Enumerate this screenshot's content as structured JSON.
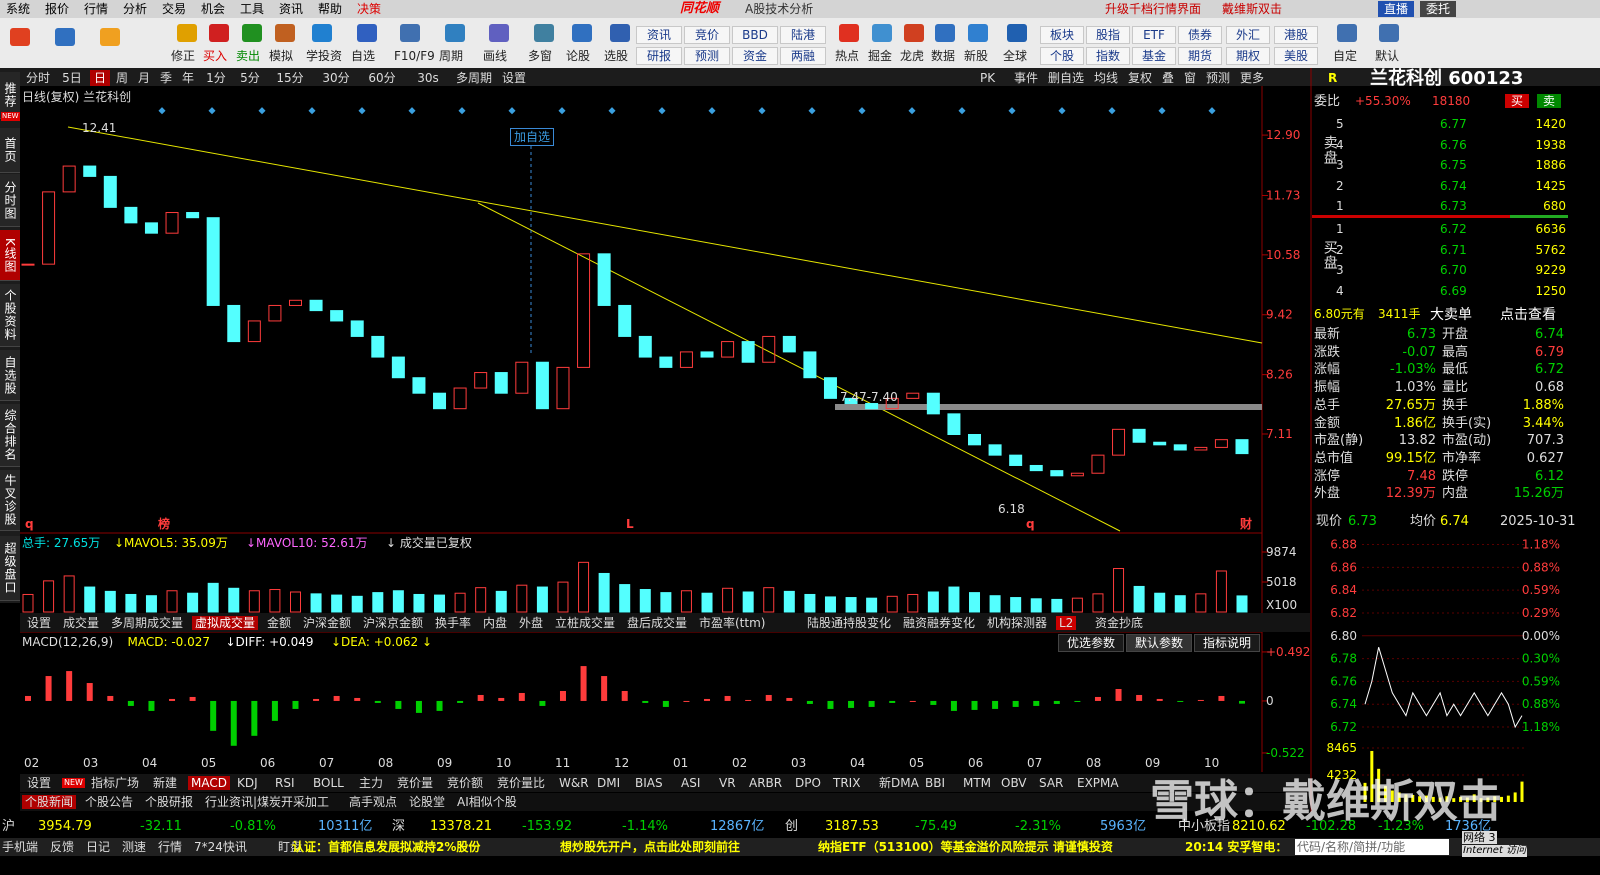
{
  "menu": [
    "系统",
    "报价",
    "行情",
    "分析",
    "交易",
    "机会",
    "工具",
    "资讯",
    "帮助",
    "决策"
  ],
  "app_title": "同花顺",
  "app_subtitle": "A股技术分析",
  "top_links": [
    "升级千档行情界面",
    "戴维斯双击"
  ],
  "top_buttons": [
    "直播",
    "委托"
  ],
  "toolbar": [
    "修正",
    "买入",
    "卖出",
    "模拟",
    "学投资",
    "自选",
    "F10/F9",
    "周期",
    "画线",
    "多窗",
    "论股",
    "选股"
  ],
  "toolbar_grid": [
    [
      "资讯",
      "竞价",
      "BBD",
      "陆港"
    ],
    [
      "研报",
      "预测",
      "资金",
      "两融"
    ]
  ],
  "toolbar2": [
    "热点",
    "掘金",
    "龙虎",
    "数据",
    "新股",
    "全球"
  ],
  "toolbar_grid2": [
    [
      "板块",
      "股指",
      "ETF",
      "债券",
      "外汇",
      "港股"
    ],
    [
      "个股",
      "指数",
      "基金",
      "期货",
      "期权",
      "美股"
    ]
  ],
  "toolbar3": [
    "自定",
    "默认"
  ],
  "new_badge": "NEW",
  "sidebar": [
    "推荐",
    "首页",
    "分时图",
    "K线图",
    "个股资料",
    "自选股",
    "综合排名",
    "牛叉诊股",
    "超级盘口"
  ],
  "period_tabs": [
    "分时",
    "5日",
    "日",
    "周",
    "月",
    "季",
    "年",
    "1分",
    "5分",
    "15分",
    "30分",
    "60分",
    "30s",
    "多周期",
    "设置"
  ],
  "chart_tools": [
    "PK",
    "事件",
    "删自选",
    "均线",
    "复权",
    "叠",
    "窗",
    "预测",
    "更多"
  ],
  "kline": {
    "title": "日线(复权) 兰花科创",
    "ylim": [
      5.25,
      13.58
    ],
    "yticks": [
      {
        "value": 12.9,
        "label": "12.90"
      },
      11.73,
      10.58,
      9.42,
      8.26,
      7.11
    ],
    "closes": [
      10.4,
      11.8,
      12.3,
      12.1,
      11.5,
      11.2,
      11.0,
      11.4,
      11.3,
      9.6,
      8.9,
      9.3,
      9.6,
      9.7,
      9.5,
      9.3,
      9.0,
      8.6,
      8.2,
      7.9,
      7.6,
      8.0,
      8.3,
      7.9,
      8.5,
      7.6,
      8.4,
      10.6,
      9.6,
      9.0,
      8.6,
      8.4,
      8.7,
      8.6,
      8.9,
      8.5,
      9.0,
      8.7,
      8.2,
      7.8,
      7.7,
      7.6,
      7.8,
      7.9,
      7.5,
      7.1,
      6.9,
      6.7,
      6.5,
      6.4,
      6.3,
      6.35,
      6.7,
      7.2,
      6.95,
      6.9,
      6.8,
      6.85,
      7.0,
      6.73
    ],
    "annotations": {
      "high": "12.41",
      "low": "6.18",
      "range": "7.47-7.40",
      "add": "加自选"
    },
    "markers": [
      "q",
      "榜",
      "L",
      "q",
      "财"
    ],
    "months": [
      "02",
      "03",
      "04",
      "05",
      "06",
      "07",
      "08",
      "09",
      "10",
      "11",
      "12",
      "01",
      "02",
      "03",
      "04",
      "05",
      "06",
      "07",
      "08",
      "09",
      "10"
    ]
  },
  "volume": {
    "legend": [
      "总手: 27.65万",
      "↓MAVOL5: 35.09万",
      "↓MAVOL10: 52.61万",
      "↓ 成交量已复权"
    ],
    "ylim": [
      162,
      12625
    ],
    "yticks": [
      9874,
      5018
    ],
    "unit": "X100",
    "values": [
      3000,
      5200,
      6000,
      4200,
      3500,
      3000,
      2800,
      3600,
      3200,
      4800,
      4000,
      3600,
      3800,
      3400,
      3100,
      2900,
      2700,
      3300,
      3600,
      3000,
      2900,
      3200,
      4100,
      3500,
      4500,
      4200,
      5000,
      8200,
      6400,
      4600,
      3800,
      3300,
      3600,
      3200,
      4000,
      3400,
      4100,
      3500,
      3000,
      2600,
      2500,
      2400,
      2700,
      3000,
      3400,
      4200,
      3300,
      2800,
      2500,
      2300,
      2200,
      2400,
      3100,
      7200,
      4300,
      3200,
      2800,
      3100,
      6800,
      2765
    ]
  },
  "volume_tabs": [
    "设置",
    "成交量",
    "多周期成交量",
    "虚拟成交量",
    "金额",
    "沪深金额",
    "沪深京金额",
    "换手率",
    "内盘",
    "外盘",
    "立桩成交量",
    "盘后成交量",
    "市盈率(ttm)",
    "陆股通持股变化",
    "融资融券变化",
    "机构探测器",
    "L2",
    "资金抄底"
  ],
  "macd": {
    "legend": [
      "MACD(12,26,9)",
      "MACD: -0.027",
      "↓DIFF: +0.049",
      "↓DEA: +0.062 ↓"
    ],
    "buttons": [
      "优选参数",
      "默认参数",
      "指标说明"
    ],
    "ylim": [
      -0.673,
      0.662
    ],
    "yticks": [
      {
        "value": 0.492,
        "label": "+0.492"
      },
      0,
      -0.522
    ],
    "values": [
      0.05,
      0.25,
      0.3,
      0.18,
      0.05,
      -0.05,
      -0.1,
      0.02,
      0.04,
      -0.3,
      -0.45,
      -0.35,
      -0.2,
      -0.08,
      0.02,
      0.05,
      0.03,
      -0.02,
      -0.08,
      -0.12,
      -0.1,
      -0.02,
      0.06,
      0.03,
      0.08,
      -0.05,
      0.1,
      0.35,
      0.25,
      0.1,
      -0.02,
      -0.06,
      0.0,
      0.02,
      0.05,
      0.01,
      0.06,
      0.03,
      -0.03,
      -0.08,
      -0.07,
      -0.06,
      -0.02,
      0.0,
      -0.04,
      -0.1,
      -0.09,
      -0.08,
      -0.06,
      -0.05,
      -0.03,
      -0.01,
      0.04,
      0.12,
      0.06,
      0.02,
      -0.01,
      0.01,
      0.05,
      -0.027
    ]
  },
  "indicator_tabs": [
    "设置",
    "指标广场",
    "新建",
    "MACD",
    "KDJ",
    "RSI",
    "BOLL",
    "主力",
    "竞价量",
    "竞价额",
    "竞价量比",
    "W&R",
    "DMI",
    "BIAS",
    "ASI",
    "VR",
    "ARBR",
    "DPO",
    "TRIX",
    "新DMA",
    "BBI",
    "MTM",
    "OBV",
    "SAR",
    "EXPMA"
  ],
  "news_tabs": [
    "个股新闻",
    "个股公告",
    "个股研报",
    "行业资讯|煤炭开采加工",
    "高手观点",
    "论股堂",
    "AI相似个股"
  ],
  "quote": {
    "code_label": "R",
    "name": "兰花科创 600123",
    "webi_label": "委比",
    "webi": "+55.30%",
    "webi_vol": "18180",
    "buy_btn": "买",
    "sell_btn": "卖",
    "ask_label": "卖盘",
    "bid_label": "买盘",
    "asks": [
      [
        "5",
        "6.77",
        "1420"
      ],
      [
        "4",
        "6.76",
        "1938"
      ],
      [
        "3",
        "6.75",
        "1886"
      ],
      [
        "2",
        "6.74",
        "1425"
      ],
      [
        "1",
        "6.73",
        "680"
      ]
    ],
    "bids": [
      [
        "1",
        "6.72",
        "6636"
      ],
      [
        "2",
        "6.71",
        "5762"
      ],
      [
        "3",
        "6.70",
        "9229"
      ],
      [
        "4",
        "6.69",
        "1250"
      ]
    ],
    "big_order": [
      "6.80元有",
      "3411手",
      "大卖单",
      "点击查看"
    ],
    "stats": [
      [
        "最新",
        "6.73",
        "开盘",
        "6.74"
      ],
      [
        "涨跌",
        "-0.07",
        "最高",
        "6.79"
      ],
      [
        "涨幅",
        "-1.03%",
        "最低",
        "6.72"
      ],
      [
        "振幅",
        "1.03%",
        "量比",
        "0.68"
      ],
      [
        "总手",
        "27.65万",
        "换手",
        "1.88%"
      ],
      [
        "金额",
        "1.86亿",
        "换手(实)",
        "3.44%"
      ],
      [
        "市盈(静)",
        "13.82",
        "市盈(动)",
        "707.3"
      ],
      [
        "总市值",
        "99.15亿",
        "市净率",
        "0.627"
      ],
      [
        "涨停",
        "7.48",
        "跌停",
        "6.12"
      ],
      [
        "外盘",
        "12.39万",
        "内盘",
        "15.26万"
      ]
    ]
  },
  "intraday": {
    "header": [
      "现价",
      "6.73",
      "均价",
      "6.74",
      "2025-10-31"
    ],
    "ylim": [
      6.713,
      6.884
    ],
    "yticks": [
      6.88,
      6.86,
      6.84,
      6.82,
      {
        "value": 6.8,
        "label": "6.80"
      },
      6.78,
      6.76,
      6.74,
      6.72
    ],
    "pct_labels": [
      "1.18%",
      "0.88%",
      "0.59%",
      "0.29%",
      "0.00%",
      "0.30%",
      "0.59%",
      "0.88%",
      "1.18%"
    ],
    "prices": [
      6.74,
      6.76,
      6.79,
      6.77,
      6.75,
      6.74,
      6.73,
      6.75,
      6.74,
      6.73,
      6.74,
      6.75,
      6.73,
      6.74,
      6.73,
      6.74,
      6.75,
      6.74,
      6.73,
      6.74,
      6.75,
      6.74,
      6.72,
      6.73
    ],
    "vol_ylim": [
      0,
      9719
    ],
    "vol_yticks": [
      8465,
      4232
    ],
    "volumes": [
      3000,
      8000,
      5200,
      2500,
      1800,
      1500,
      1200,
      1100,
      900,
      1000,
      800,
      700,
      900,
      600,
      800,
      700,
      1200,
      600,
      700,
      900,
      800,
      1000,
      1500,
      3200
    ]
  },
  "index_bar": [
    {
      "name": "沪",
      "price": "3954.79",
      "chg": "-32.11",
      "pct": "-0.81%",
      "amt": "10311亿"
    },
    {
      "name": "深",
      "price": "13378.21",
      "chg": "-153.92",
      "pct": "-1.14%",
      "amt": "12867亿"
    },
    {
      "name": "创",
      "price": "3187.53",
      "chg": "-75.49",
      "pct": "-2.31%",
      "amt": "5963亿"
    },
    {
      "name": "中小板指",
      "price": "8210.62",
      "chg": "-102.28",
      "pct": "-1.23%",
      "amt": "1736亿"
    }
  ],
  "status_bar": [
    "手机端",
    "反馈",
    "日记",
    "测速",
    "行情",
    "7*24快讯",
    "盯盘"
  ],
  "ticker": [
    "认证：首都信息发展拟减持2%股份",
    "想炒股先开户，点击此处即刻前往",
    "纳指ETF（513100）等基金溢价风险提示 请谨慎投资",
    "20:14 安孚智电："
  ],
  "search_placeholder": "代码/名称/简拼/功能",
  "network": [
    "网络 3",
    "Internet 访问"
  ],
  "watermark": "雪球：戴维斯双击"
}
